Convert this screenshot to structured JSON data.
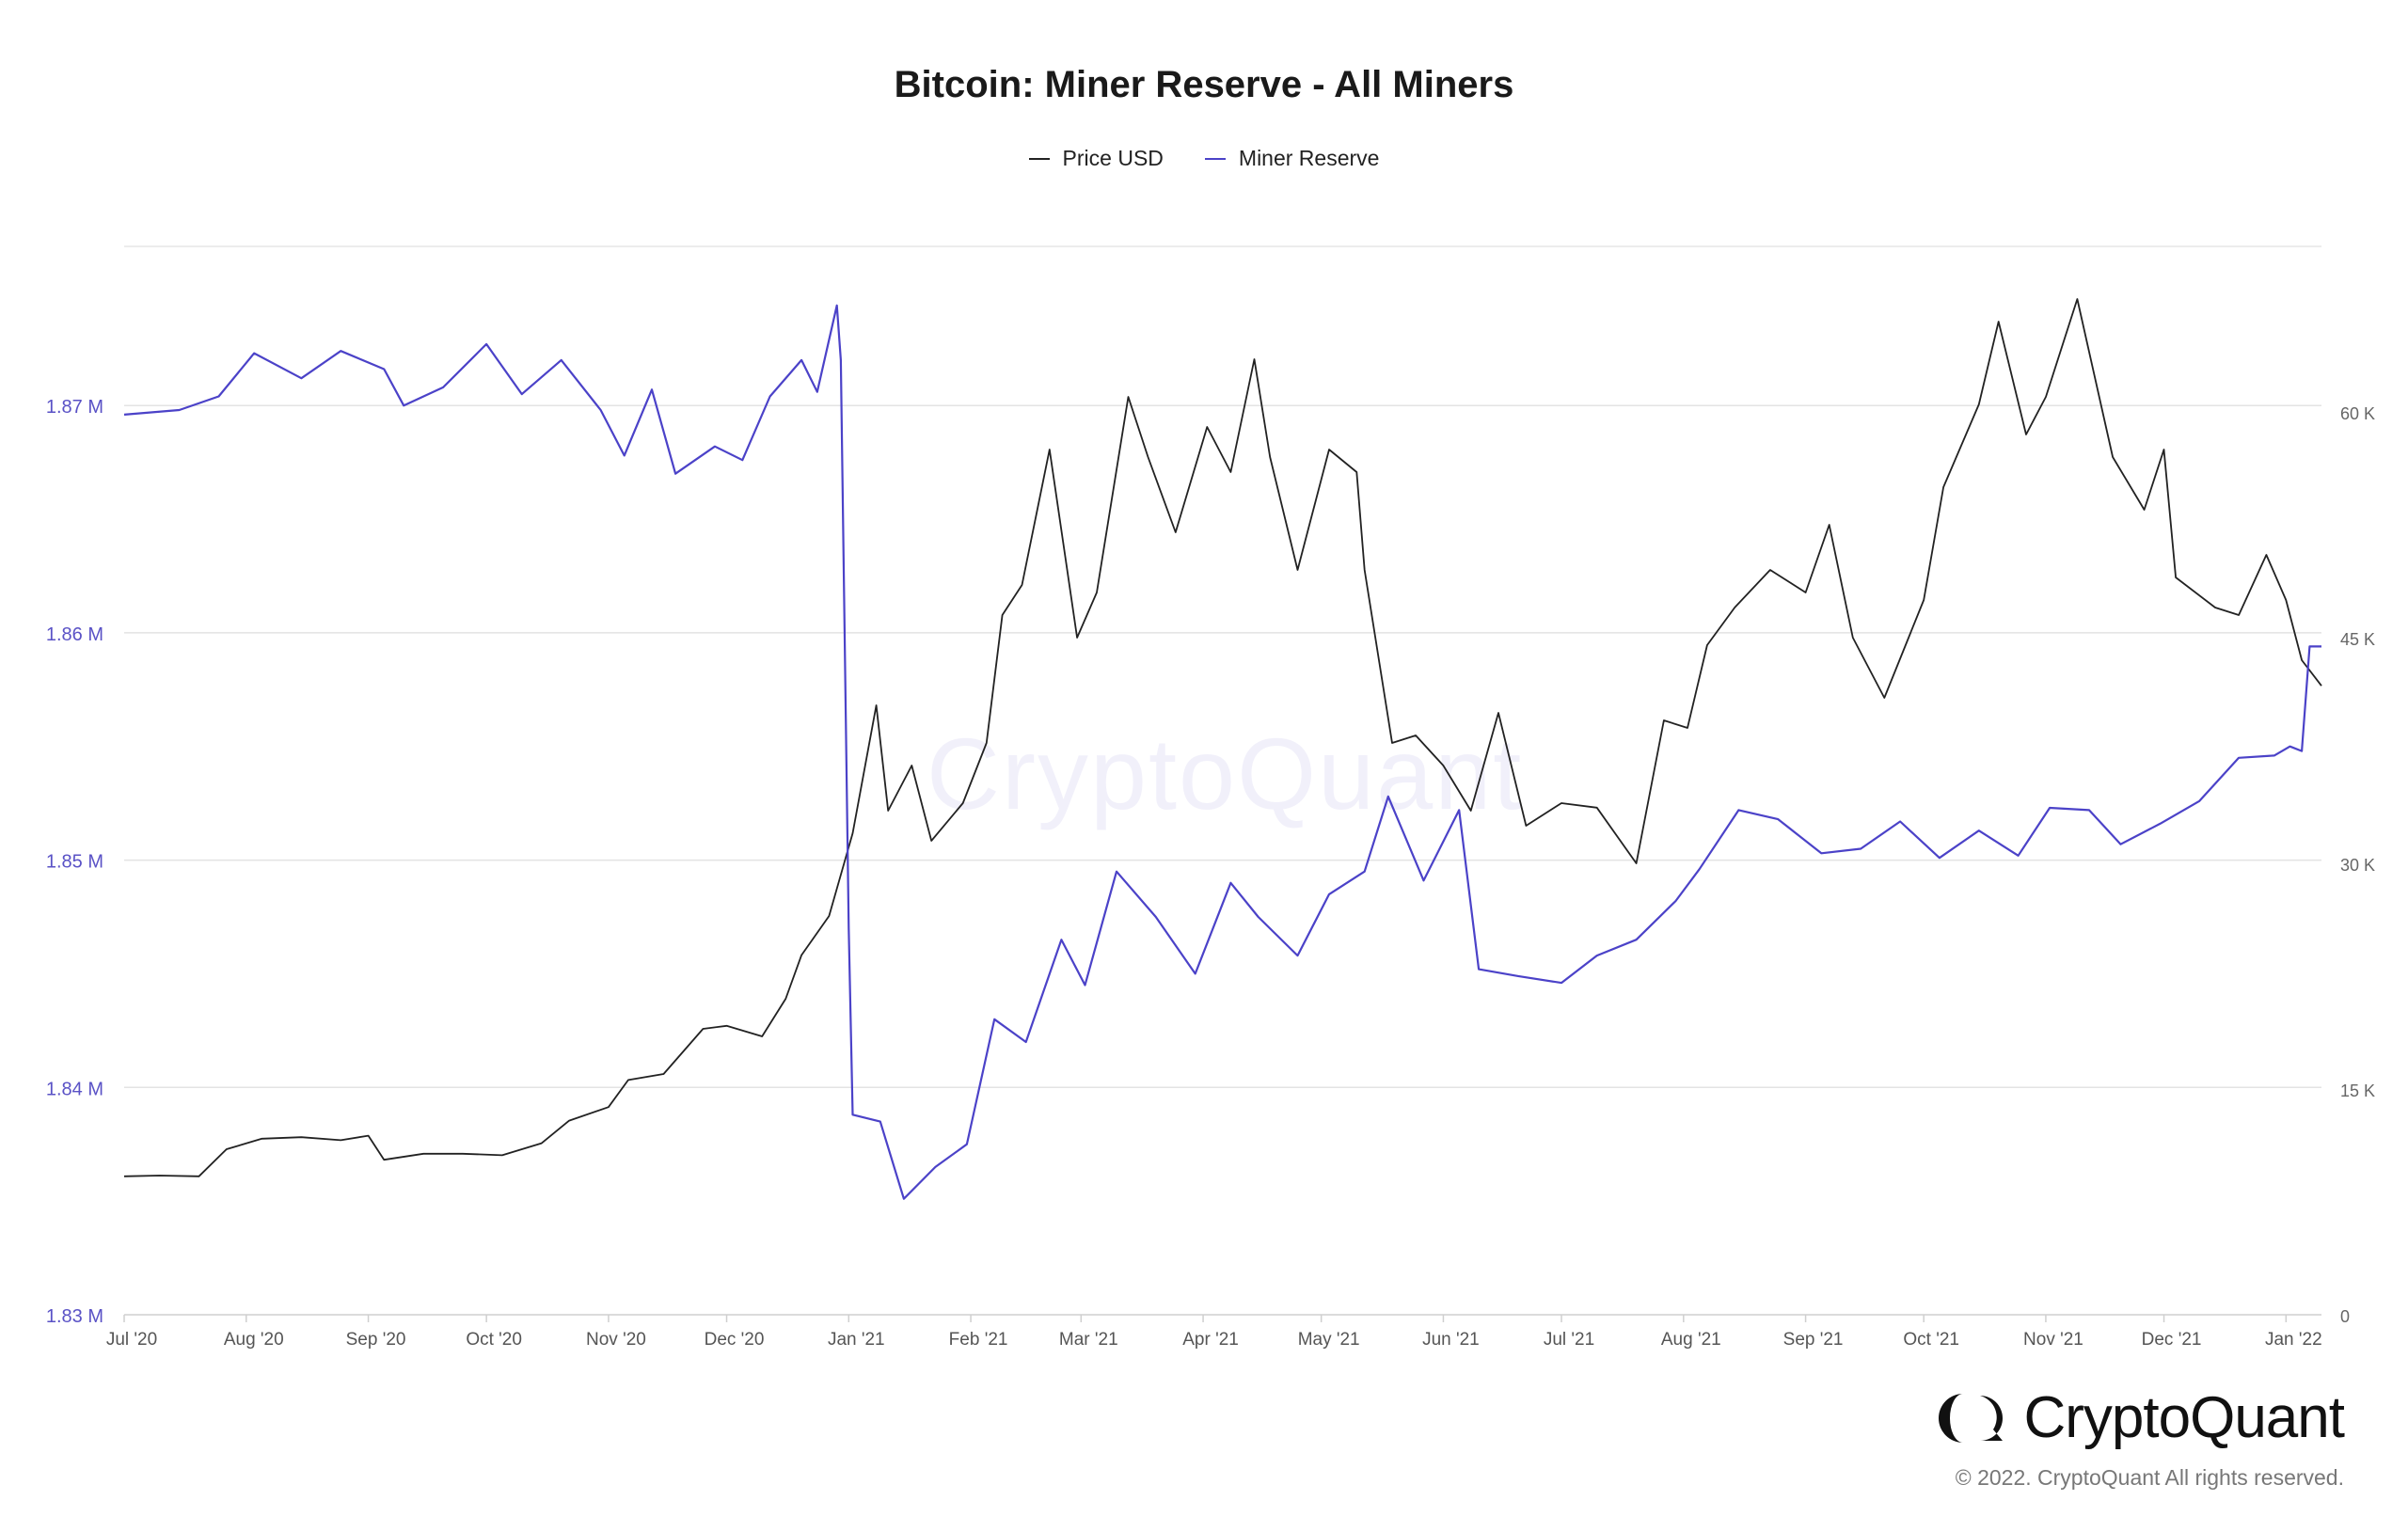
{
  "chart_data": {
    "type": "line",
    "title": "Bitcoin: Miner Reserve - All Miners",
    "legend": {
      "placement": "top-center"
    },
    "grid": true,
    "x_ticks": [
      "Jul '20",
      "Aug '20",
      "Sep '20",
      "Oct '20",
      "Nov '20",
      "Dec '20",
      "Jan '21",
      "Feb '21",
      "Mar '21",
      "Apr '21",
      "May '21",
      "Jun '21",
      "Jul '21",
      "Aug '21",
      "Sep '21",
      "Oct '21",
      "Nov '21",
      "Dec '21",
      "Jan '22"
    ],
    "x_range": [
      "2020-07-01",
      "2022-01-10"
    ],
    "y_left": {
      "ticks": [
        "1.83 M",
        "1.84 M",
        "1.85 M",
        "1.86 M",
        "1.87 M"
      ],
      "range": [
        1830000,
        1877000
      ]
    },
    "y_right": {
      "ticks": [
        "0",
        "15 K",
        "30 K",
        "45 K",
        "60 K"
      ],
      "range": [
        0,
        71000
      ]
    },
    "series": [
      {
        "name": "Price USD",
        "axis": "right",
        "color": "#222222",
        "points": [
          [
            "2020-07-01",
            9200
          ],
          [
            "2020-07-10",
            9250
          ],
          [
            "2020-07-20",
            9200
          ],
          [
            "2020-07-27",
            11000
          ],
          [
            "2020-08-05",
            11700
          ],
          [
            "2020-08-15",
            11800
          ],
          [
            "2020-08-25",
            11600
          ],
          [
            "2020-09-01",
            11900
          ],
          [
            "2020-09-05",
            10300
          ],
          [
            "2020-09-15",
            10700
          ],
          [
            "2020-09-25",
            10700
          ],
          [
            "2020-10-05",
            10600
          ],
          [
            "2020-10-15",
            11400
          ],
          [
            "2020-10-22",
            12900
          ],
          [
            "2020-11-01",
            13800
          ],
          [
            "2020-11-06",
            15600
          ],
          [
            "2020-11-15",
            16000
          ],
          [
            "2020-11-25",
            19000
          ],
          [
            "2020-12-01",
            19200
          ],
          [
            "2020-12-10",
            18500
          ],
          [
            "2020-12-16",
            21000
          ],
          [
            "2020-12-20",
            23900
          ],
          [
            "2020-12-27",
            26500
          ],
          [
            "2021-01-02",
            32000
          ],
          [
            "2021-01-08",
            40500
          ],
          [
            "2021-01-11",
            33500
          ],
          [
            "2021-01-17",
            36500
          ],
          [
            "2021-01-22",
            31500
          ],
          [
            "2021-01-30",
            34000
          ],
          [
            "2021-02-05",
            38000
          ],
          [
            "2021-02-09",
            46500
          ],
          [
            "2021-02-14",
            48500
          ],
          [
            "2021-02-21",
            57500
          ],
          [
            "2021-02-28",
            45000
          ],
          [
            "2021-03-05",
            48000
          ],
          [
            "2021-03-13",
            61000
          ],
          [
            "2021-03-18",
            57000
          ],
          [
            "2021-03-25",
            52000
          ],
          [
            "2021-04-02",
            59000
          ],
          [
            "2021-04-08",
            56000
          ],
          [
            "2021-04-14",
            63500
          ],
          [
            "2021-04-18",
            57000
          ],
          [
            "2021-04-25",
            49500
          ],
          [
            "2021-05-03",
            57500
          ],
          [
            "2021-05-10",
            56000
          ],
          [
            "2021-05-12",
            49500
          ],
          [
            "2021-05-19",
            38000
          ],
          [
            "2021-05-25",
            38500
          ],
          [
            "2021-06-01",
            36500
          ],
          [
            "2021-06-08",
            33500
          ],
          [
            "2021-06-15",
            40000
          ],
          [
            "2021-06-22",
            32500
          ],
          [
            "2021-07-01",
            34000
          ],
          [
            "2021-07-10",
            33700
          ],
          [
            "2021-07-20",
            30000
          ],
          [
            "2021-07-27",
            39500
          ],
          [
            "2021-08-02",
            39000
          ],
          [
            "2021-08-07",
            44500
          ],
          [
            "2021-08-14",
            47000
          ],
          [
            "2021-08-23",
            49500
          ],
          [
            "2021-09-01",
            48000
          ],
          [
            "2021-09-07",
            52500
          ],
          [
            "2021-09-13",
            45000
          ],
          [
            "2021-09-21",
            41000
          ],
          [
            "2021-10-01",
            47500
          ],
          [
            "2021-10-06",
            55000
          ],
          [
            "2021-10-15",
            60500
          ],
          [
            "2021-10-20",
            66000
          ],
          [
            "2021-10-27",
            58500
          ],
          [
            "2021-11-01",
            61000
          ],
          [
            "2021-11-09",
            67500
          ],
          [
            "2021-11-18",
            57000
          ],
          [
            "2021-11-26",
            53500
          ],
          [
            "2021-12-01",
            57500
          ],
          [
            "2021-12-04",
            49000
          ],
          [
            "2021-12-14",
            47000
          ],
          [
            "2021-12-20",
            46500
          ],
          [
            "2021-12-27",
            50500
          ],
          [
            "2022-01-01",
            47500
          ],
          [
            "2022-01-05",
            43500
          ],
          [
            "2022-01-10",
            41800
          ]
        ]
      },
      {
        "name": "Miner Reserve",
        "axis": "left",
        "color": "#4b42c8",
        "points": [
          [
            "2020-07-01",
            1869600
          ],
          [
            "2020-07-15",
            1869800
          ],
          [
            "2020-07-25",
            1870400
          ],
          [
            "2020-08-03",
            1872300
          ],
          [
            "2020-08-15",
            1871200
          ],
          [
            "2020-08-25",
            1872400
          ],
          [
            "2020-09-05",
            1871600
          ],
          [
            "2020-09-10",
            1870000
          ],
          [
            "2020-09-20",
            1870800
          ],
          [
            "2020-10-01",
            1872700
          ],
          [
            "2020-10-10",
            1870500
          ],
          [
            "2020-10-20",
            1872000
          ],
          [
            "2020-10-30",
            1869800
          ],
          [
            "2020-11-05",
            1867800
          ],
          [
            "2020-11-12",
            1870700
          ],
          [
            "2020-11-18",
            1867000
          ],
          [
            "2020-11-28",
            1868200
          ],
          [
            "2020-12-05",
            1867600
          ],
          [
            "2020-12-12",
            1870400
          ],
          [
            "2020-12-20",
            1872000
          ],
          [
            "2020-12-24",
            1870600
          ],
          [
            "2020-12-29",
            1874400
          ],
          [
            "2020-12-30",
            1872000
          ],
          [
            "2021-01-01",
            1847000
          ],
          [
            "2021-01-02",
            1838800
          ],
          [
            "2021-01-09",
            1838500
          ],
          [
            "2021-01-15",
            1835100
          ],
          [
            "2021-01-23",
            1836500
          ],
          [
            "2021-01-31",
            1837500
          ],
          [
            "2021-02-07",
            1843000
          ],
          [
            "2021-02-15",
            1842000
          ],
          [
            "2021-02-24",
            1846500
          ],
          [
            "2021-03-02",
            1844500
          ],
          [
            "2021-03-10",
            1849500
          ],
          [
            "2021-03-20",
            1847500
          ],
          [
            "2021-03-30",
            1845000
          ],
          [
            "2021-04-08",
            1849000
          ],
          [
            "2021-04-15",
            1847500
          ],
          [
            "2021-04-25",
            1845800
          ],
          [
            "2021-05-03",
            1848500
          ],
          [
            "2021-05-12",
            1849500
          ],
          [
            "2021-05-18",
            1852800
          ],
          [
            "2021-05-27",
            1849100
          ],
          [
            "2021-06-05",
            1852200
          ],
          [
            "2021-06-10",
            1845200
          ],
          [
            "2021-06-20",
            1844900
          ],
          [
            "2021-07-01",
            1844600
          ],
          [
            "2021-07-10",
            1845800
          ],
          [
            "2021-07-20",
            1846500
          ],
          [
            "2021-07-30",
            1848200
          ],
          [
            "2021-08-05",
            1849600
          ],
          [
            "2021-08-15",
            1852200
          ],
          [
            "2021-08-25",
            1851800
          ],
          [
            "2021-09-05",
            1850300
          ],
          [
            "2021-09-15",
            1850500
          ],
          [
            "2021-09-25",
            1851700
          ],
          [
            "2021-10-05",
            1850100
          ],
          [
            "2021-10-15",
            1851300
          ],
          [
            "2021-10-25",
            1850200
          ],
          [
            "2021-11-02",
            1852300
          ],
          [
            "2021-11-12",
            1852200
          ],
          [
            "2021-11-20",
            1850700
          ],
          [
            "2021-11-30",
            1851600
          ],
          [
            "2021-12-10",
            1852600
          ],
          [
            "2021-12-20",
            1854500
          ],
          [
            "2021-12-29",
            1854600
          ],
          [
            "2022-01-02",
            1855000
          ],
          [
            "2022-01-05",
            1854800
          ],
          [
            "2022-01-07",
            1859400
          ],
          [
            "2022-01-10",
            1859400
          ]
        ]
      }
    ]
  },
  "watermark": "CryptoQuant",
  "brand": {
    "name": "CryptoQuant",
    "copyright": "© 2022. CryptoQuant All rights reserved."
  }
}
